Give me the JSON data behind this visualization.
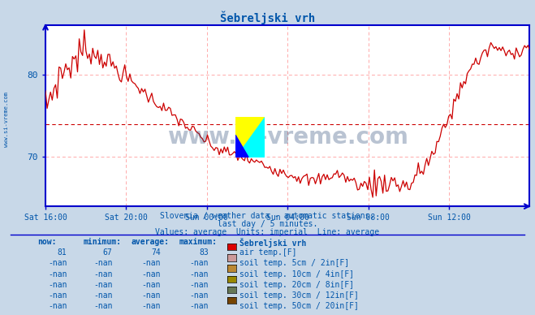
{
  "title": "Šebreljski vrh",
  "bg_color": "#c8d8e8",
  "plot_bg_color": "#ffffff",
  "line_color": "#cc0000",
  "grid_color": "#ffaaaa",
  "axis_color": "#0000cc",
  "text_color": "#0055aa",
  "x_labels": [
    "Sat 16:00",
    "Sat 20:00",
    "Sun 00:00",
    "Sun 04:00",
    "Sun 08:00",
    "Sun 12:00"
  ],
  "x_ticks": [
    0,
    48,
    96,
    144,
    192,
    240
  ],
  "y_ticks": [
    70,
    80
  ],
  "ylim": [
    64,
    86
  ],
  "xlim": [
    0,
    288
  ],
  "avg_line_y": 74,
  "subtitle1": "Slovenia / weather data - automatic stations.",
  "subtitle2": "last day / 5 minutes.",
  "subtitle3": "Values: average  Units: imperial  Line: average",
  "legend_title": "Šebreljski vrh",
  "legend_items": [
    {
      "label": "air temp.[F]",
      "color": "#dd0000"
    },
    {
      "label": "soil temp. 5cm / 2in[F]",
      "color": "#cc9999"
    },
    {
      "label": "soil temp. 10cm / 4in[F]",
      "color": "#bb8833"
    },
    {
      "label": "soil temp. 20cm / 8in[F]",
      "color": "#998800"
    },
    {
      "label": "soil temp. 30cm / 12in[F]",
      "color": "#667755"
    },
    {
      "label": "soil temp. 50cm / 20in[F]",
      "color": "#774400"
    }
  ],
  "table_headers": [
    "now:",
    "minimum:",
    "average:",
    "maximum:"
  ],
  "table_values": [
    "81",
    "67",
    "74",
    "83"
  ]
}
